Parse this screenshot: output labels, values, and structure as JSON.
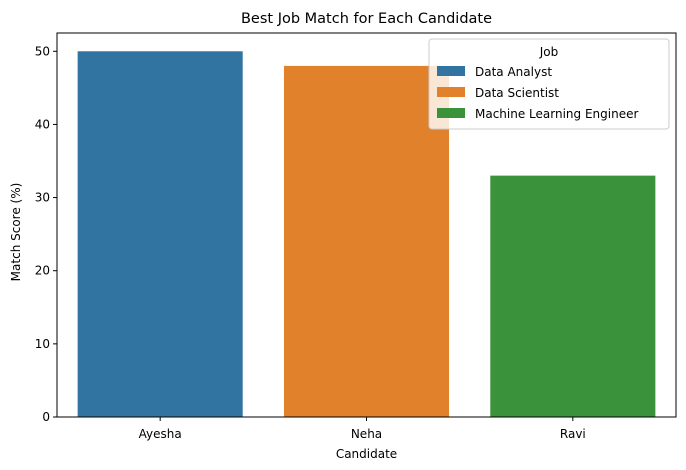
{
  "chart_data": {
    "type": "bar",
    "title": "Best Job Match for Each Candidate",
    "xlabel": "Candidate",
    "ylabel": "Match Score (%)",
    "categories": [
      "Ayesha",
      "Neha",
      "Ravi"
    ],
    "values": [
      50,
      48,
      33
    ],
    "ylim": [
      0,
      52.5
    ],
    "yticks": [
      0,
      10,
      20,
      30,
      40,
      50
    ],
    "grid": false,
    "legend": {
      "title": "Job",
      "placement": "top-right",
      "entries": [
        {
          "name": "Data Analyst",
          "color": "#3274a1"
        },
        {
          "name": "Data Scientist",
          "color": "#e1812c"
        },
        {
          "name": "Machine Learning Engineer",
          "color": "#3a923a"
        }
      ]
    },
    "series": [
      {
        "name": "Data Analyst",
        "category": "Ayesha",
        "value": 50,
        "color": "#3274a1"
      },
      {
        "name": "Data Scientist",
        "category": "Neha",
        "value": 48,
        "color": "#e1812c"
      },
      {
        "name": "Machine Learning Engineer",
        "category": "Ravi",
        "value": 33,
        "color": "#3a923a"
      }
    ]
  }
}
